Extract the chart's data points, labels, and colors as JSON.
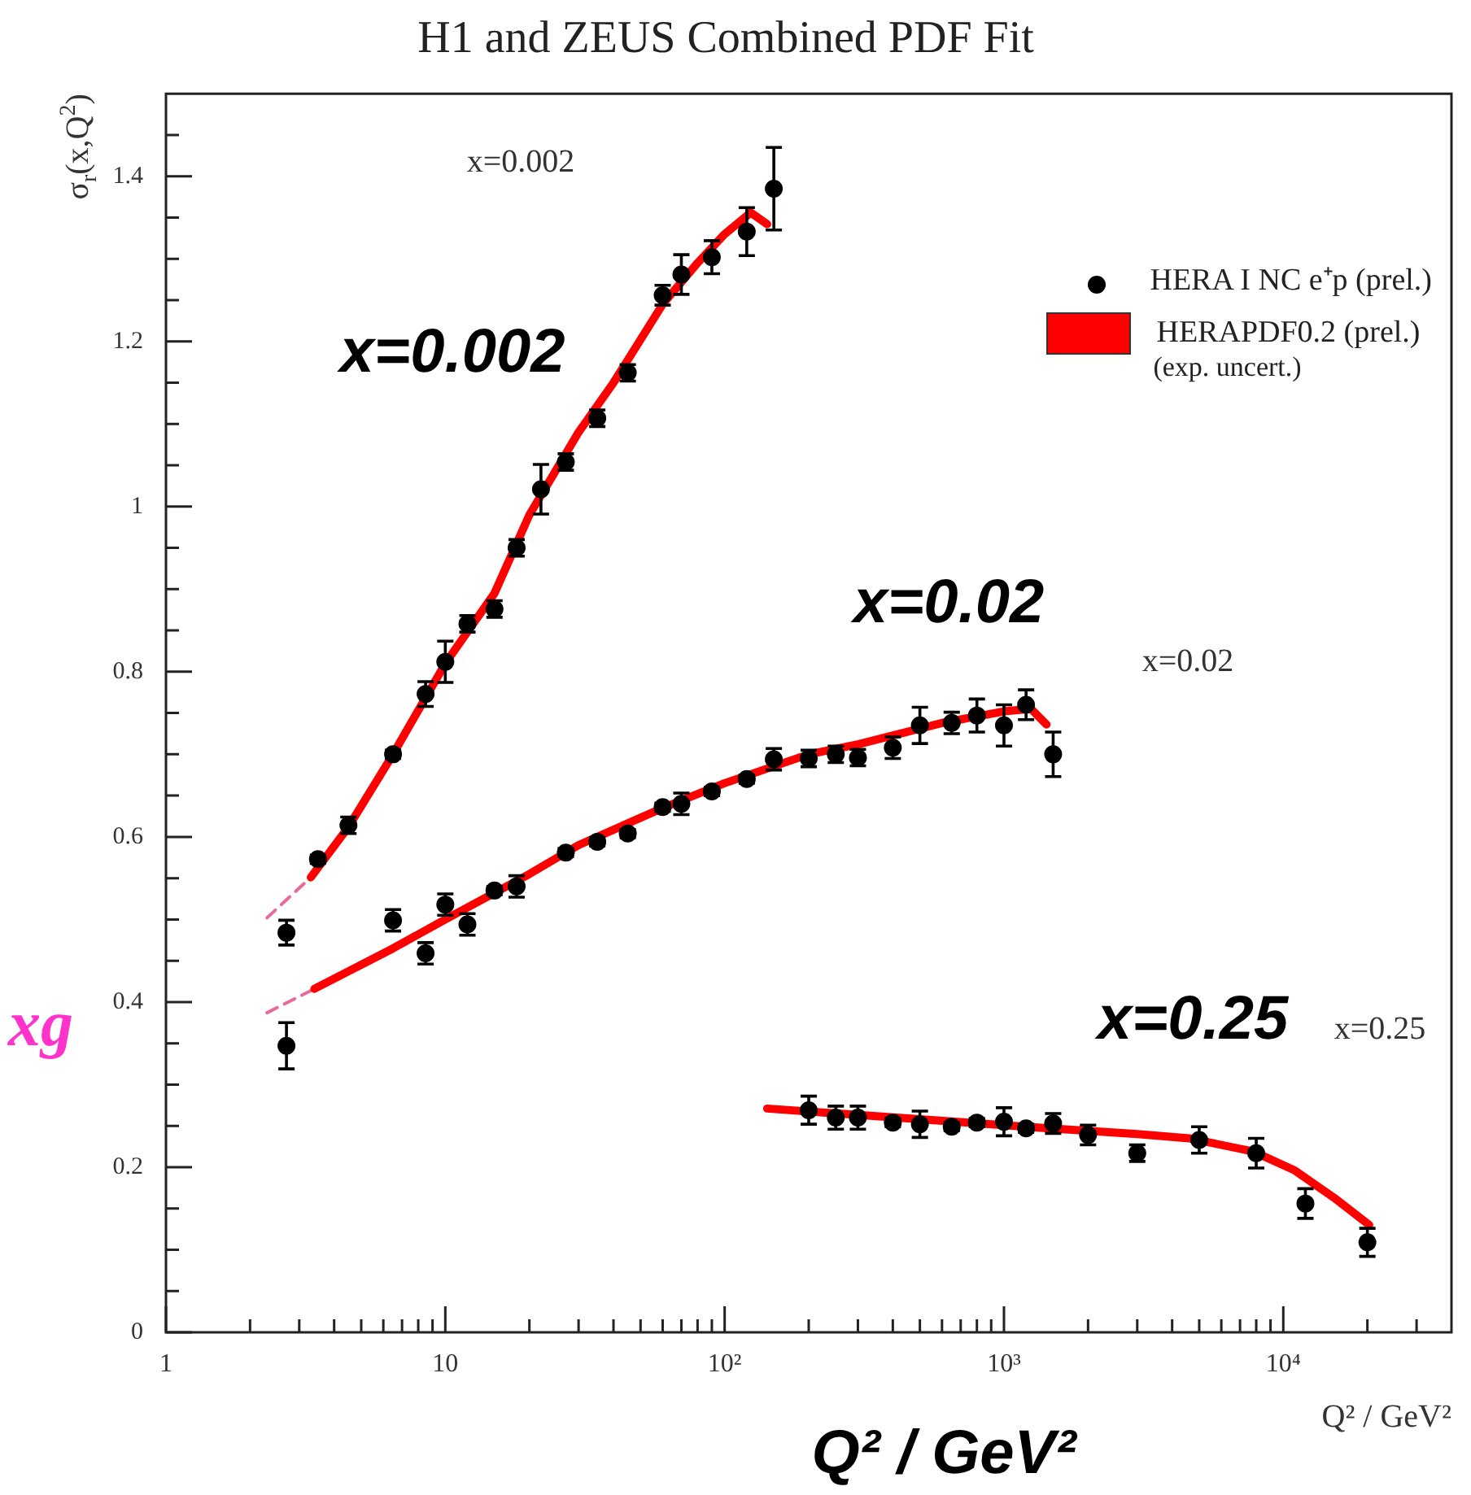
{
  "chart_data": {
    "type": "scatter",
    "title": "H1 and ZEUS Combined PDF Fit",
    "xlabel": "Q² / GeV²",
    "ylabel": "σ$_{r}$(x,Q$^{2}$)",
    "log": "x",
    "xlim": [
      1,
      40000
    ],
    "ylim": [
      0,
      1.5
    ],
    "xticks": [
      {
        "value": 1,
        "label": "1"
      },
      {
        "value": 2,
        "label": null
      },
      {
        "value": 3,
        "label": null
      },
      {
        "value": 4,
        "label": null
      },
      {
        "value": 5,
        "label": null
      },
      {
        "value": 6,
        "label": null
      },
      {
        "value": 7,
        "label": null
      },
      {
        "value": 8,
        "label": null
      },
      {
        "value": 9,
        "label": null
      },
      {
        "value": 10,
        "label": "10"
      },
      {
        "value": 20,
        "label": null
      },
      {
        "value": 30,
        "label": null
      },
      {
        "value": 40,
        "label": null
      },
      {
        "value": 50,
        "label": null
      },
      {
        "value": 60,
        "label": null
      },
      {
        "value": 70,
        "label": null
      },
      {
        "value": 80,
        "label": null
      },
      {
        "value": 90,
        "label": null
      },
      {
        "value": 100,
        "label": "10²"
      },
      {
        "value": 200,
        "label": null
      },
      {
        "value": 300,
        "label": null
      },
      {
        "value": 400,
        "label": null
      },
      {
        "value": 500,
        "label": null
      },
      {
        "value": 600,
        "label": null
      },
      {
        "value": 700,
        "label": null
      },
      {
        "value": 800,
        "label": null
      },
      {
        "value": 900,
        "label": null
      },
      {
        "value": 1000,
        "label": "10³"
      },
      {
        "value": 2000,
        "label": null
      },
      {
        "value": 3000,
        "label": null
      },
      {
        "value": 4000,
        "label": null
      },
      {
        "value": 5000,
        "label": null
      },
      {
        "value": 6000,
        "label": null
      },
      {
        "value": 7000,
        "label": null
      },
      {
        "value": 8000,
        "label": null
      },
      {
        "value": 9000,
        "label": null
      },
      {
        "value": 10000,
        "label": "10⁴"
      },
      {
        "value": 20000,
        "label": null
      },
      {
        "value": 30000,
        "label": null
      }
    ],
    "yticks": [
      0,
      {
        "value": 0.05,
        "label": null
      },
      {
        "value": 0.1,
        "label": null
      },
      {
        "value": 0.15,
        "label": null
      },
      {
        "value": 0.2,
        "label": "0.2"
      },
      {
        "value": 0.25,
        "label": null
      },
      {
        "value": 0.3,
        "label": null
      },
      {
        "value": 0.35,
        "label": null
      },
      {
        "value": 0.4,
        "label": "0.4"
      },
      {
        "value": 0.45,
        "label": null
      },
      {
        "value": 0.5,
        "label": null
      },
      {
        "value": 0.55,
        "label": null
      },
      {
        "value": 0.6,
        "label": "0.6"
      },
      {
        "value": 0.65,
        "label": null
      },
      {
        "value": 0.7,
        "label": null
      },
      {
        "value": 0.75,
        "label": null
      },
      {
        "value": 0.8,
        "label": "0.8"
      },
      {
        "value": 0.85,
        "label": null
      },
      {
        "value": 0.9,
        "label": null
      },
      {
        "value": 0.95,
        "label": null
      },
      1,
      {
        "value": 1.05,
        "label": null
      },
      {
        "value": 1.1,
        "label": null
      },
      {
        "value": 1.15,
        "label": null
      },
      {
        "value": 1.2,
        "label": "1.2"
      },
      {
        "value": 1.25,
        "label": null
      },
      {
        "value": 1.3,
        "label": null
      },
      {
        "value": 1.35,
        "label": null
      },
      {
        "value": 1.4,
        "label": "1.4"
      },
      {
        "value": 1.45,
        "label": null
      }
    ],
    "legend": "top right",
    "series": [
      {
        "name": "HERA I NC e⁺p (prel.)",
        "color": "#000000",
        "x": [
          2.7,
          3.5,
          4.5,
          6.5,
          8.5,
          10,
          12,
          15,
          18,
          22,
          27,
          35,
          45,
          60,
          70,
          90,
          120,
          150
        ],
        "values": [
          0.484,
          0.573,
          0.614,
          0.7,
          0.773,
          0.812,
          0.858,
          0.876,
          0.95,
          1.021,
          1.054,
          1.107,
          1.162,
          1.256,
          1.281,
          1.302,
          1.333,
          1.385
        ],
        "errors": [
          0.015,
          0.005,
          0.01,
          0.005,
          0.015,
          0.025,
          0.01,
          0.01,
          0.01,
          0.03,
          0.01,
          0.01,
          0.01,
          0.012,
          0.024,
          0.02,
          0.029,
          0.05
        ]
      },
      {
        "marker": "circle",
        "color": "#000000",
        "x": [
          2.7,
          6.5,
          8.5,
          10,
          12,
          15,
          18,
          27,
          35,
          45,
          60,
          70,
          90,
          120,
          150,
          200,
          250,
          300,
          400,
          500,
          650,
          800,
          1000,
          1200,
          1500
        ],
        "values": [
          0.347,
          0.499,
          0.459,
          0.518,
          0.494,
          0.535,
          0.54,
          0.581,
          0.594,
          0.604,
          0.636,
          0.64,
          0.655,
          0.67,
          0.694,
          0.695,
          0.7,
          0.696,
          0.708,
          0.735,
          0.738,
          0.747,
          0.735,
          0.76,
          0.7
        ],
        "errors": [
          0.028,
          0.013,
          0.013,
          0.013,
          0.013,
          0.005,
          0.013,
          0.005,
          0.005,
          0.005,
          0.005,
          0.013,
          0.005,
          0.005,
          0.013,
          0.01,
          0.01,
          0.01,
          0.013,
          0.022,
          0.013,
          0.02,
          0.025,
          0.018,
          0.027
        ]
      },
      {
        "marker": "circle",
        "color": "#000000",
        "x": [
          200,
          250,
          300,
          400,
          500,
          650,
          800,
          1000,
          1200,
          1500,
          2000,
          3000,
          5000,
          8000,
          12000,
          20000
        ],
        "values": [
          0.269,
          0.26,
          0.26,
          0.254,
          0.252,
          0.249,
          0.254,
          0.255,
          0.247,
          0.253,
          0.239,
          0.217,
          0.233,
          0.217,
          0.156,
          0.109
        ],
        "errors": [
          0.017,
          0.014,
          0.014,
          0.005,
          0.016,
          0.005,
          0.005,
          0.017,
          0.005,
          0.012,
          0.012,
          0.01,
          0.016,
          0.018,
          0.018,
          0.017
        ]
      },
      {
        "type": "line",
        "name": "HERAPDF0.2 (prel.)",
        "color": "#ff0000",
        "x": [
          3.3,
          4.5,
          6.5,
          10,
          15,
          20,
          30,
          40,
          60,
          80,
          100,
          124,
          142
        ],
        "values": [
          0.551,
          0.612,
          0.7,
          0.81,
          0.895,
          0.99,
          1.09,
          1.15,
          1.245,
          1.295,
          1.33,
          1.356,
          1.342
        ]
      },
      {
        "type": "line",
        "color": "#ff0000",
        "x": [
          3.4,
          6.5,
          10,
          20,
          30,
          60,
          100,
          200,
          300,
          600,
          1000,
          1250,
          1420
        ],
        "values": [
          0.416,
          0.465,
          0.5,
          0.555,
          0.59,
          0.635,
          0.665,
          0.7,
          0.712,
          0.738,
          0.752,
          0.755,
          0.736
        ]
      },
      {
        "type": "line",
        "color": "#ff0000",
        "x": [
          142,
          500,
          1320,
          3000,
          4600,
          7800,
          11000,
          15200,
          20300
        ],
        "values": [
          0.271,
          0.258,
          0.248,
          0.24,
          0.235,
          0.219,
          0.196,
          0.163,
          0.13
        ]
      },
      {
        "type": "line",
        "line_style": "dashed",
        "color": "#e86a9a",
        "x": [
          2.3,
          3.3
        ],
        "values": [
          0.502,
          0.551
        ]
      },
      {
        "type": "line",
        "line_style": "dashed",
        "color": "#e86a9a",
        "x": [
          2.3,
          3.4
        ],
        "values": [
          0.387,
          0.416
        ]
      }
    ],
    "annotations": [
      "x=0.002",
      "x=0.02",
      "x=0.25",
      "x=0.002",
      "x=0.02",
      "x=0.25",
      "Q² / GeV²",
      "xg",
      "(exp. uncert.)"
    ]
  }
}
